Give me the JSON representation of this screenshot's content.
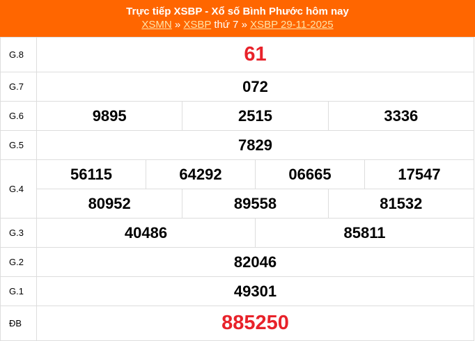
{
  "header": {
    "title": "Trực tiếp XSBP - Xổ số Bình Phước hôm nay",
    "links": [
      "XSMN",
      "XSBP",
      "XSBP 29-11-2025"
    ],
    "sep": "»",
    "day": "thứ 7"
  },
  "colors": {
    "header": "#ff6600",
    "special": "#e8222a"
  },
  "prizes": {
    "g8": {
      "label": "G.8",
      "nums": [
        "61"
      ]
    },
    "g7": {
      "label": "G.7",
      "nums": [
        "072"
      ]
    },
    "g6": {
      "label": "G.6",
      "nums": [
        "9895",
        "2515",
        "3336"
      ]
    },
    "g5": {
      "label": "G.5",
      "nums": [
        "7829"
      ]
    },
    "g4": {
      "label": "G.4",
      "nums": [
        "56115",
        "64292",
        "06665",
        "17547",
        "80952",
        "89558",
        "81532"
      ]
    },
    "g3": {
      "label": "G.3",
      "nums": [
        "40486",
        "85811"
      ]
    },
    "g2": {
      "label": "G.2",
      "nums": [
        "82046"
      ]
    },
    "g1": {
      "label": "G.1",
      "nums": [
        "49301"
      ]
    },
    "db": {
      "label": "ĐB",
      "nums": [
        "885250"
      ]
    }
  }
}
